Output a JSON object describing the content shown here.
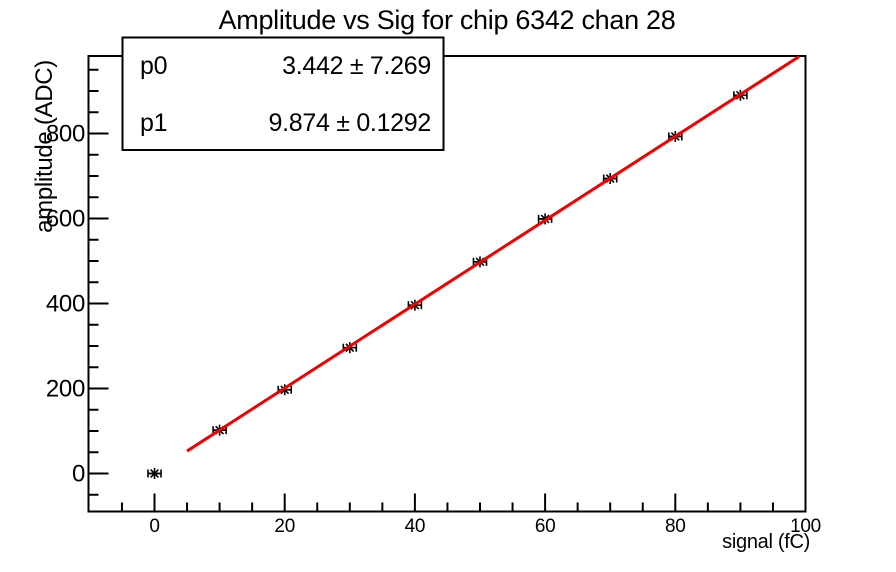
{
  "title": "Amplitude vs Sig for chip 6342 chan 28",
  "stats_box": {
    "rows": [
      {
        "name": "p0",
        "value": "3.442 ± 7.269"
      },
      {
        "name": "p1",
        "value": "9.874 ± 0.1292"
      }
    ]
  },
  "colors": {
    "fit_line": "#f40000",
    "axis": "#000000",
    "text": "#000000",
    "background": "#ffffff"
  },
  "chart_data": {
    "type": "scatter",
    "title": "Amplitude vs Sig for chip 6342 chan 28",
    "xlabel": "signal (fC)",
    "ylabel": "amplitude (ADC)",
    "xlim": [
      -10.1,
      100.1
    ],
    "ylim": [
      -89,
      982
    ],
    "x_major_ticks": [
      0,
      20,
      40,
      60,
      80,
      100
    ],
    "x_minor_tick_step": 5,
    "y_major_ticks": [
      0,
      200,
      400,
      600,
      800
    ],
    "y_minor_tick_step": 50,
    "grid": false,
    "legend": false,
    "marker_style": "asterisk",
    "series": [
      {
        "name": "amplitude vs signal",
        "x": [
          0,
          10,
          20,
          30,
          40,
          50,
          60,
          70,
          80,
          90
        ],
        "y": [
          0,
          102,
          197,
          296,
          396,
          498,
          599,
          694,
          793,
          890
        ],
        "xerr": 1.0
      }
    ],
    "fit": {
      "label": "linear",
      "p0": 3.442,
      "p0_err": 7.269,
      "p1": 9.874,
      "p1_err": 0.1292,
      "x_start": 5.0,
      "x_end": 99.0
    }
  }
}
